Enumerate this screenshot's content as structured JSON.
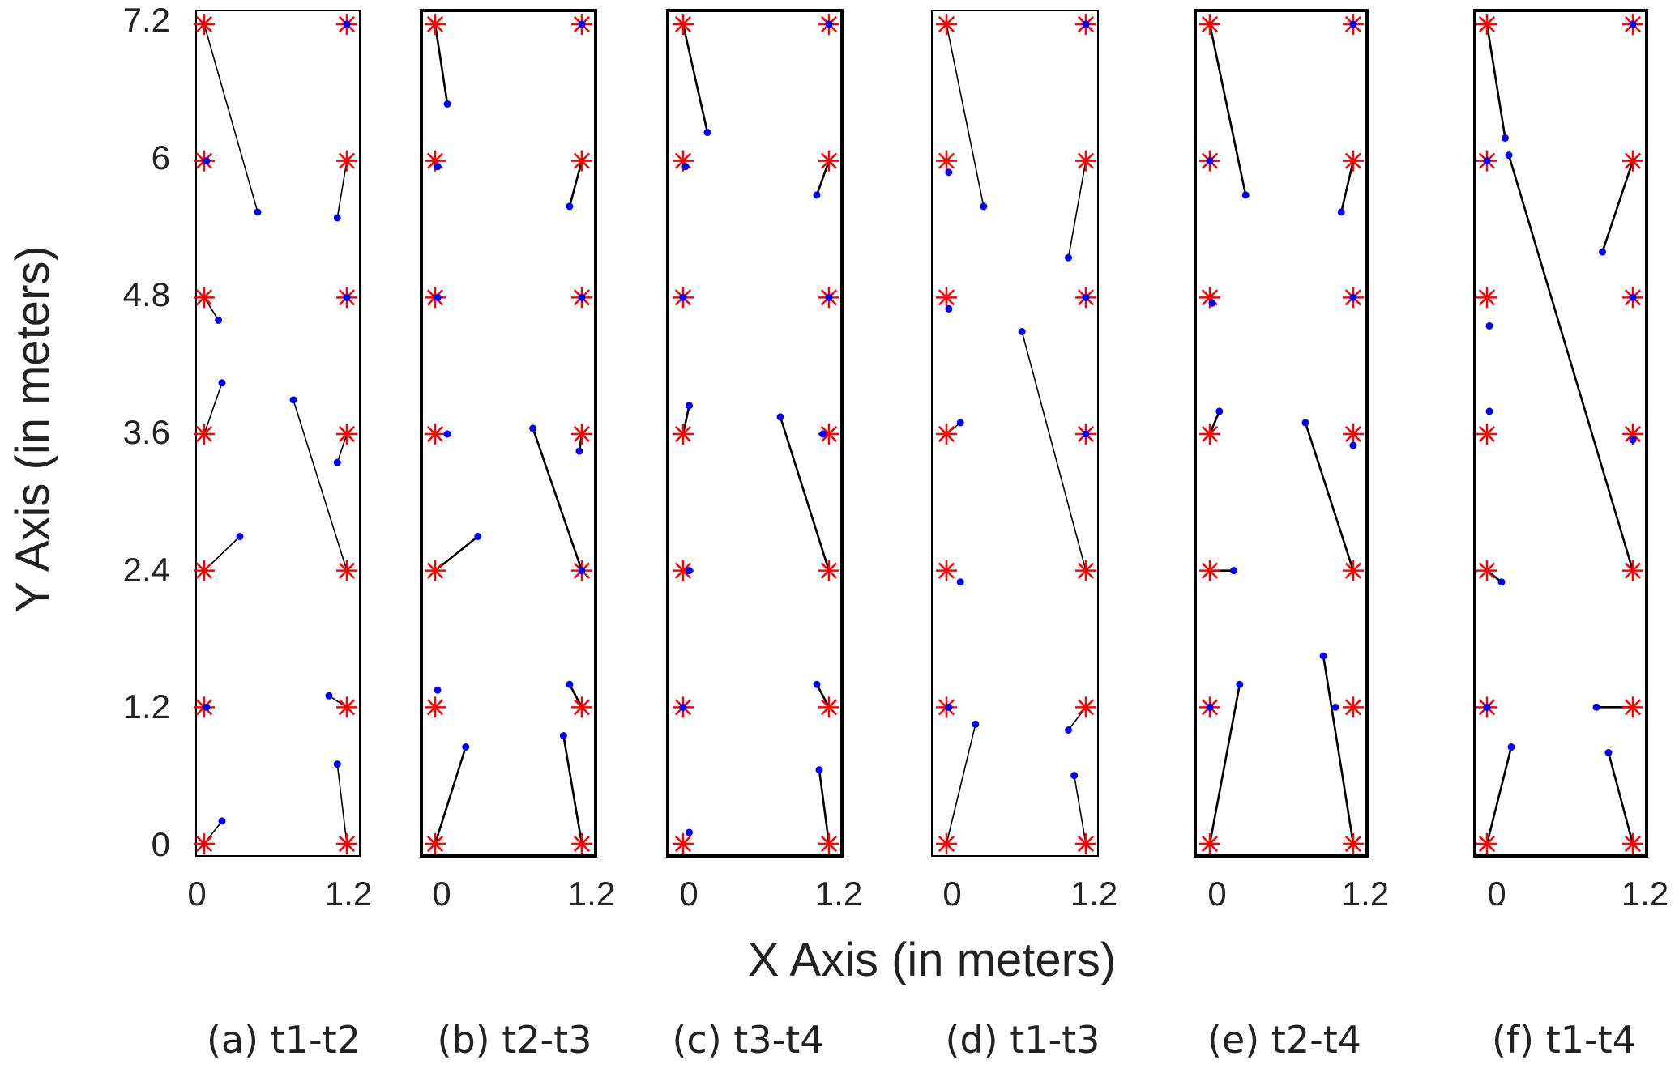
{
  "chart_data": {
    "type": "scatter",
    "figure_ylabel": "Y Axis (in meters)",
    "figure_xlabel": "X Axis (in meters)",
    "xlim": [
      -0.1,
      1.28
    ],
    "ylim": [
      -0.1,
      7.3
    ],
    "x_ticks": [
      0,
      1.2
    ],
    "x_tick_labels": [
      "0",
      "1.2"
    ],
    "y_ticks": [
      0,
      1.2,
      2.4,
      3.6,
      4.8,
      6,
      7.2
    ],
    "y_tick_labels": [
      "0",
      "1.2",
      "2.4",
      "3.6",
      "4.8",
      "6",
      "7.2"
    ],
    "grid": false,
    "legend": "none",
    "reference_points": [
      [
        0,
        0
      ],
      [
        1.2,
        0
      ],
      [
        0,
        1.2
      ],
      [
        1.2,
        1.2
      ],
      [
        0,
        2.4
      ],
      [
        1.2,
        2.4
      ],
      [
        0,
        3.6
      ],
      [
        1.2,
        3.6
      ],
      [
        0,
        4.8
      ],
      [
        1.2,
        4.8
      ],
      [
        0,
        6
      ],
      [
        1.2,
        6
      ],
      [
        0,
        7.2
      ],
      [
        1.2,
        7.2
      ]
    ],
    "colors": {
      "reference_marker": "#ff0000",
      "estimate_marker": "#0000ff",
      "error_line": "#000000",
      "frame": "#000000"
    },
    "panels": [
      {
        "title": "(a) t1-t2",
        "estimates": [
          [
            0.15,
            0.2
          ],
          [
            1.12,
            0.7
          ],
          [
            0.02,
            1.2
          ],
          [
            1.05,
            1.3
          ],
          [
            0.3,
            2.7
          ],
          [
            1.12,
            3.35
          ],
          [
            0.75,
            3.9
          ],
          [
            0.15,
            4.05
          ],
          [
            0.12,
            4.6
          ],
          [
            1.2,
            4.8
          ],
          [
            0.02,
            6.0
          ],
          [
            1.12,
            5.5
          ],
          [
            0.45,
            5.55
          ],
          [
            1.2,
            7.2
          ]
        ]
      },
      {
        "title": "(b) t2-t3",
        "estimates": [
          [
            0.25,
            0.85
          ],
          [
            1.05,
            0.95
          ],
          [
            0.02,
            1.35
          ],
          [
            1.1,
            1.4
          ],
          [
            0.35,
            2.7
          ],
          [
            1.2,
            2.4
          ],
          [
            0.8,
            3.65
          ],
          [
            1.18,
            3.45
          ],
          [
            0.1,
            3.6
          ],
          [
            1.2,
            4.8
          ],
          [
            0.02,
            4.8
          ],
          [
            1.1,
            5.6
          ],
          [
            0.02,
            5.95
          ],
          [
            0.1,
            6.5
          ],
          [
            1.2,
            7.2
          ]
        ]
      },
      {
        "title": "(c) t3-t4",
        "estimates": [
          [
            0.05,
            0.1
          ],
          [
            1.12,
            0.65
          ],
          [
            0,
            1.2
          ],
          [
            1.1,
            1.4
          ],
          [
            0.05,
            2.4
          ],
          [
            0.8,
            3.75
          ],
          [
            1.15,
            3.6
          ],
          [
            0.05,
            3.85
          ],
          [
            0,
            4.8
          ],
          [
            1.2,
            4.8
          ],
          [
            0.02,
            5.95
          ],
          [
            1.1,
            5.7
          ],
          [
            0.2,
            6.25
          ],
          [
            1.2,
            7.2
          ]
        ]
      },
      {
        "title": "(d) t1-t3",
        "estimates": [
          [
            0.25,
            1.05
          ],
          [
            1.05,
            1.0
          ],
          [
            0.02,
            1.2
          ],
          [
            1.1,
            0.6
          ],
          [
            0.12,
            2.3
          ],
          [
            0.65,
            4.5
          ],
          [
            0.12,
            3.7
          ],
          [
            1.2,
            3.6
          ],
          [
            0.02,
            4.7
          ],
          [
            1.2,
            4.8
          ],
          [
            1.05,
            5.15
          ],
          [
            0.02,
            5.9
          ],
          [
            0.32,
            5.6
          ],
          [
            1.2,
            7.2
          ]
        ]
      },
      {
        "title": "(e) t2-t4",
        "estimates": [
          [
            0.25,
            1.4
          ],
          [
            0.95,
            1.65
          ],
          [
            0,
            1.2
          ],
          [
            1.05,
            1.2
          ],
          [
            0.2,
            2.4
          ],
          [
            0.8,
            3.7
          ],
          [
            1.2,
            3.5
          ],
          [
            0.08,
            3.8
          ],
          [
            0.02,
            4.75
          ],
          [
            1.2,
            4.8
          ],
          [
            1.1,
            5.55
          ],
          [
            0,
            6.0
          ],
          [
            0.3,
            5.7
          ],
          [
            1.2,
            7.2
          ]
        ]
      },
      {
        "title": "(f) t1-t4",
        "estimates": [
          [
            0.2,
            0.85
          ],
          [
            1.0,
            0.8
          ],
          [
            0,
            1.2
          ],
          [
            0.9,
            1.2
          ],
          [
            0.12,
            2.3
          ],
          [
            0.02,
            3.8
          ],
          [
            1.2,
            3.55
          ],
          [
            0.02,
            4.55
          ],
          [
            1.2,
            4.8
          ],
          [
            0.95,
            5.2
          ],
          [
            0,
            6.0
          ],
          [
            0.18,
            6.05
          ],
          [
            0.15,
            6.2
          ],
          [
            1.2,
            7.2
          ]
        ]
      }
    ],
    "error_segments": [
      [
        [
          0,
          0,
          0.15,
          0.2
        ],
        [
          1.2,
          0,
          1.12,
          0.7
        ],
        [
          1.2,
          1.2,
          1.05,
          1.3
        ],
        [
          0,
          2.4,
          0.3,
          2.7
        ],
        [
          1.2,
          2.4,
          0.75,
          3.9
        ],
        [
          1.2,
          3.6,
          1.12,
          3.35
        ],
        [
          0,
          3.6,
          0.15,
          4.05
        ],
        [
          0,
          4.8,
          0.12,
          4.6
        ],
        [
          1.2,
          6,
          1.12,
          5.5
        ],
        [
          0,
          7.2,
          0.45,
          5.55
        ]
      ],
      [
        [
          0,
          0,
          0.25,
          0.85
        ],
        [
          1.2,
          0,
          1.05,
          0.95
        ],
        [
          1.2,
          1.2,
          1.1,
          1.4
        ],
        [
          0,
          2.4,
          0.35,
          2.7
        ],
        [
          1.2,
          2.4,
          0.8,
          3.65
        ],
        [
          1.2,
          3.6,
          1.18,
          3.45
        ],
        [
          1.2,
          6,
          1.1,
          5.6
        ],
        [
          0,
          7.2,
          0.1,
          6.5
        ]
      ],
      [
        [
          1.2,
          0,
          1.12,
          0.65
        ],
        [
          1.2,
          1.2,
          1.1,
          1.4
        ],
        [
          1.2,
          2.4,
          0.8,
          3.75
        ],
        [
          0,
          3.6,
          0.05,
          3.85
        ],
        [
          1.2,
          6,
          1.1,
          5.7
        ],
        [
          0,
          7.2,
          0.2,
          6.25
        ]
      ],
      [
        [
          0,
          0,
          0.25,
          1.05
        ],
        [
          1.2,
          1.2,
          1.05,
          1.0
        ],
        [
          1.2,
          0,
          1.1,
          0.6
        ],
        [
          1.2,
          2.4,
          0.65,
          4.5
        ],
        [
          0,
          3.6,
          0.12,
          3.7
        ],
        [
          1.2,
          6,
          1.05,
          5.15
        ],
        [
          0,
          7.2,
          0.32,
          5.6
        ]
      ],
      [
        [
          0,
          0,
          0.25,
          1.4
        ],
        [
          1.2,
          0,
          0.95,
          1.65
        ],
        [
          0,
          2.4,
          0.2,
          2.4
        ],
        [
          1.2,
          2.4,
          0.8,
          3.7
        ],
        [
          0,
          3.6,
          0.08,
          3.8
        ],
        [
          1.2,
          6,
          1.1,
          5.55
        ],
        [
          0,
          7.2,
          0.3,
          5.7
        ]
      ],
      [
        [
          0,
          0,
          0.2,
          0.85
        ],
        [
          1.2,
          0,
          1.0,
          0.8
        ],
        [
          1.2,
          1.2,
          0.9,
          1.2
        ],
        [
          0,
          2.4,
          0.12,
          2.3
        ],
        [
          1.2,
          2.4,
          0.18,
          6.05
        ],
        [
          1.2,
          6,
          0.95,
          5.2
        ],
        [
          0,
          7.2,
          0.15,
          6.2
        ]
      ]
    ]
  }
}
